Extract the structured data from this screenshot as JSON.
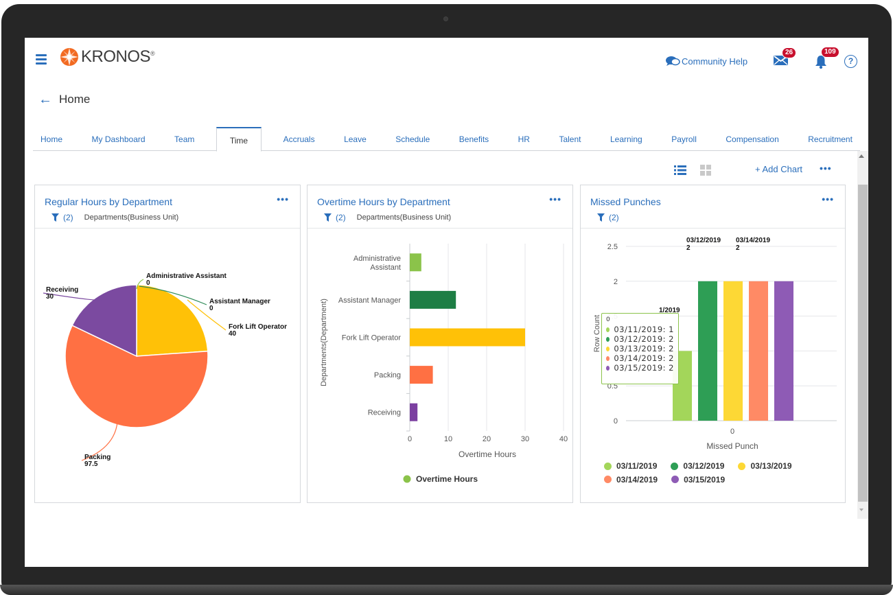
{
  "header": {
    "logo_text": "KRONOS",
    "logo_reg": "®",
    "community_help": "Community Help",
    "mail_badge": "26",
    "notifications_badge": "109",
    "help_label": "?"
  },
  "breadcrumb": {
    "back_label": "Home"
  },
  "tabs": [
    {
      "label": "Home"
    },
    {
      "label": "My Dashboard"
    },
    {
      "label": "Team"
    },
    {
      "label": "Time",
      "active": true
    },
    {
      "label": "Accruals"
    },
    {
      "label": "Leave"
    },
    {
      "label": "Schedule"
    },
    {
      "label": "Benefits"
    },
    {
      "label": "HR"
    },
    {
      "label": "Talent"
    },
    {
      "label": "Learning"
    },
    {
      "label": "Payroll"
    },
    {
      "label": "Compensation"
    },
    {
      "label": "Recruitment"
    }
  ],
  "toolbar": {
    "add_chart": "+ Add Chart",
    "more": "•••"
  },
  "cards": {
    "regular": {
      "title": "Regular Hours by Department",
      "more": "•••",
      "filter_count": "(2)",
      "filter_desc": "Departments(Business Unit)"
    },
    "overtime": {
      "title": "Overtime Hours by Department",
      "more": "•••",
      "filter_count": "(2)",
      "filter_desc": "Departments(Business Unit)"
    },
    "missed": {
      "title": "Missed Punches",
      "more": "•••",
      "filter_count": "(2)"
    }
  },
  "chart_data": [
    {
      "type": "pie",
      "title": "Regular Hours by Department",
      "categories": [
        "Administrative Assistant",
        "Assistant Manager",
        "Fork Lift Operator",
        "Packing",
        "Receiving"
      ],
      "values": [
        0,
        0,
        40,
        97.5,
        30
      ],
      "value_labels": [
        "0",
        "0",
        "40",
        "97.5",
        "30"
      ],
      "colors": [
        "#8bc34a",
        "#2e8b57",
        "#ffc107",
        "#ff7043",
        "#7b4aa0"
      ]
    },
    {
      "type": "bar",
      "orientation": "horizontal",
      "title": "Overtime Hours by Department",
      "categories": [
        "Administrative Assistant",
        "Assistant Manager",
        "Fork Lift Operator",
        "Packing",
        "Receiving"
      ],
      "category_lines": [
        [
          "Administrative",
          "Assistant"
        ],
        [
          "Assistant Manager"
        ],
        [
          "Fork Lift Operator"
        ],
        [
          "Packing"
        ],
        [
          "Receiving"
        ]
      ],
      "values": [
        3,
        12,
        30,
        6,
        2
      ],
      "colors": [
        "#8bc34a",
        "#1e7e45",
        "#ffc107",
        "#ff7043",
        "#7b3fa0"
      ],
      "xlabel": "Overtime Hours",
      "ylabel": "Departments(Department)",
      "xticks": [
        "0",
        "10",
        "20",
        "30",
        "40"
      ],
      "xlim": [
        0,
        40
      ],
      "legend": [
        {
          "name": "Overtime Hours",
          "color": "#8bc34a"
        }
      ]
    },
    {
      "type": "bar",
      "title": "Missed Punches",
      "categories": [
        "0"
      ],
      "series": [
        {
          "name": "03/11/2019",
          "values": [
            1
          ],
          "color": "#a3d65a"
        },
        {
          "name": "03/12/2019",
          "values": [
            2
          ],
          "color": "#2e9e55"
        },
        {
          "name": "03/13/2019",
          "values": [
            2
          ],
          "color": "#fdd835"
        },
        {
          "name": "03/14/2019",
          "values": [
            2
          ],
          "color": "#ff8a65"
        },
        {
          "name": "03/15/2019",
          "values": [
            2
          ],
          "color": "#8e5bb5"
        }
      ],
      "xlabel": "Missed Punch",
      "ylabel": "Row Count",
      "yticks": [
        "0",
        "0.5",
        "1",
        "1.5",
        "2",
        "2.5"
      ],
      "ylim": [
        0,
        2.5
      ],
      "data_labels": [
        {
          "text": "03/12/2019",
          "value": "2"
        },
        {
          "text": "03/14/2019",
          "value": "2"
        },
        {
          "text": "1/2019",
          "value": ""
        }
      ],
      "tooltip": {
        "header": "0",
        "rows": [
          "03/11/2019: 1",
          "03/12/2019: 2",
          "03/13/2019: 2",
          "03/14/2019: 2",
          "03/15/2019: 2"
        ]
      },
      "legend_position": "bottom"
    }
  ]
}
